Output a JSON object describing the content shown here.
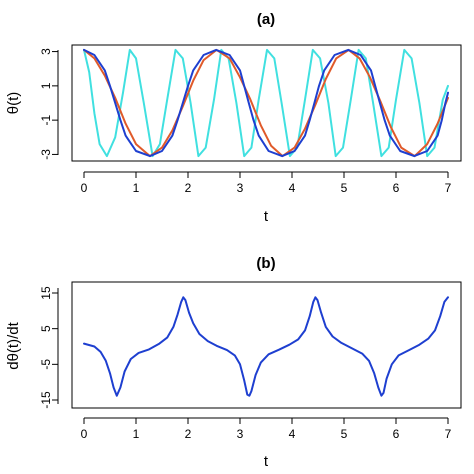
{
  "chart_data": [
    {
      "type": "line",
      "title": "(a)",
      "xlabel": "t",
      "ylabel": "θ(t)",
      "xlim": [
        0,
        7
      ],
      "ylim": [
        -3.15,
        3.15
      ],
      "xticks": [
        "0",
        "1",
        "2",
        "3",
        "4",
        "5",
        "6",
        "7"
      ],
      "yticks": [
        "-3",
        "-1",
        "1",
        "3"
      ],
      "series": [
        {
          "color": "#40E0E0",
          "x": [
            0,
            0.1,
            0.2,
            0.3,
            0.44,
            0.6,
            0.75,
            0.88,
            1.0,
            1.15,
            1.32,
            1.46,
            1.6,
            1.76,
            1.9,
            2.05,
            2.2,
            2.34,
            2.5,
            2.64,
            2.78,
            2.93,
            3.08,
            3.22,
            3.36,
            3.52,
            3.66,
            3.8,
            3.96,
            4.1,
            4.25,
            4.4,
            4.54,
            4.7,
            4.84,
            4.98,
            5.13,
            5.28,
            5.42,
            5.56,
            5.72,
            5.86,
            6.0,
            6.16,
            6.3,
            6.45,
            6.6,
            6.74,
            6.9,
            7.0
          ],
          "y": [
            3.1,
            1.8,
            -0.6,
            -2.4,
            -3.1,
            -2.0,
            0.6,
            3.1,
            2.6,
            0.0,
            -3.1,
            -2.4,
            0.2,
            3.1,
            2.6,
            0.0,
            -3.1,
            -2.6,
            0.2,
            3.1,
            2.6,
            0.0,
            -3.1,
            -2.6,
            0.2,
            3.1,
            2.6,
            0.0,
            -3.1,
            -2.6,
            0.2,
            3.1,
            2.6,
            0.0,
            -3.1,
            -2.6,
            0.2,
            3.1,
            2.6,
            0.0,
            -3.1,
            -2.6,
            0.2,
            3.1,
            2.6,
            0.0,
            -3.1,
            -2.6,
            0.2,
            1.0
          ]
        },
        {
          "color": "#E05A2A",
          "x": [
            0,
            0.2,
            0.4,
            0.6,
            0.8,
            1.0,
            1.27,
            1.5,
            1.7,
            1.9,
            2.1,
            2.3,
            2.55,
            2.8,
            3.0,
            3.2,
            3.4,
            3.6,
            3.82,
            4.05,
            4.25,
            4.45,
            4.65,
            4.85,
            5.09,
            5.3,
            5.5,
            5.7,
            5.9,
            6.1,
            6.36,
            6.6,
            6.8,
            7.0
          ],
          "y": [
            3.1,
            2.6,
            1.6,
            0.3,
            -1.2,
            -2.4,
            -3.1,
            -2.6,
            -1.6,
            -0.2,
            1.3,
            2.5,
            3.1,
            2.6,
            1.5,
            0.2,
            -1.3,
            -2.5,
            -3.1,
            -2.6,
            -1.5,
            -0.1,
            1.4,
            2.6,
            3.1,
            2.6,
            1.5,
            0.1,
            -1.4,
            -2.6,
            -3.1,
            -2.4,
            -1.2,
            0.3
          ]
        },
        {
          "color": "#1E3FD0",
          "x": [
            0,
            0.2,
            0.4,
            0.5,
            0.6,
            0.7,
            0.8,
            1.0,
            1.27,
            1.5,
            1.7,
            1.8,
            1.9,
            2.0,
            2.1,
            2.3,
            2.54,
            2.8,
            3.0,
            3.08,
            3.17,
            3.26,
            3.36,
            3.55,
            3.81,
            4.05,
            4.25,
            4.34,
            4.43,
            4.52,
            4.62,
            4.82,
            5.08,
            5.32,
            5.52,
            5.6,
            5.69,
            5.78,
            5.88,
            6.08,
            6.35,
            6.6,
            6.8,
            6.88,
            6.95,
            7.0
          ],
          "y": [
            3.1,
            2.8,
            1.9,
            1.0,
            0.0,
            -1.0,
            -1.9,
            -2.8,
            -3.1,
            -2.8,
            -1.9,
            -1.0,
            0.0,
            1.0,
            1.9,
            2.8,
            3.1,
            2.8,
            1.9,
            1.0,
            0.0,
            -1.0,
            -1.9,
            -2.8,
            -3.1,
            -2.8,
            -1.9,
            -1.0,
            0.0,
            1.0,
            1.9,
            2.8,
            3.1,
            2.8,
            1.9,
            1.0,
            0.0,
            -1.0,
            -1.9,
            -2.8,
            -3.1,
            -2.8,
            -1.9,
            -1.0,
            0.0,
            0.6
          ]
        }
      ]
    },
    {
      "type": "line",
      "title": "(b)",
      "xlabel": "t",
      "ylabel": "dθ(t)/dt",
      "xlim": [
        0,
        7
      ],
      "ylim": [
        -15,
        15
      ],
      "xticks": [
        "0",
        "1",
        "2",
        "3",
        "4",
        "5",
        "6",
        "7"
      ],
      "yticks": [
        "-15",
        "-5",
        "5",
        "15"
      ],
      "series": [
        {
          "color": "#1E3FD0",
          "x": [
            0,
            0.2,
            0.32,
            0.42,
            0.5,
            0.57,
            0.63,
            0.7,
            0.78,
            0.9,
            1.05,
            1.25,
            1.45,
            1.6,
            1.72,
            1.8,
            1.87,
            1.91,
            1.95,
            2.02,
            2.1,
            2.22,
            2.38,
            2.55,
            2.75,
            2.9,
            3.0,
            3.08,
            3.14,
            3.18,
            3.22,
            3.3,
            3.4,
            3.55,
            3.75,
            3.95,
            4.12,
            4.25,
            4.34,
            4.41,
            4.45,
            4.49,
            4.56,
            4.65,
            4.78,
            4.95,
            5.15,
            5.35,
            5.48,
            5.58,
            5.66,
            5.72,
            5.76,
            5.82,
            5.92,
            6.05,
            6.25,
            6.45,
            6.62,
            6.75,
            6.85,
            6.93,
            7.0
          ],
          "y": [
            0.8,
            0.0,
            -1.5,
            -4.0,
            -7.5,
            -11.5,
            -13.8,
            -11.5,
            -7.0,
            -3.5,
            -1.8,
            -0.8,
            0.8,
            2.5,
            5.5,
            9.0,
            12.5,
            13.8,
            13.0,
            9.5,
            6.5,
            3.5,
            1.5,
            0.2,
            -1.0,
            -2.5,
            -5.0,
            -9.5,
            -13.5,
            -13.8,
            -12.5,
            -8.0,
            -4.5,
            -2.2,
            -0.9,
            0.5,
            2.0,
            4.5,
            8.5,
            12.5,
            13.8,
            13.0,
            9.5,
            5.5,
            2.8,
            1.0,
            -0.5,
            -2.0,
            -4.0,
            -7.5,
            -11.5,
            -13.8,
            -13.0,
            -9.0,
            -5.0,
            -2.5,
            -1.0,
            0.5,
            2.2,
            4.5,
            8.5,
            12.5,
            13.8
          ]
        }
      ]
    }
  ]
}
